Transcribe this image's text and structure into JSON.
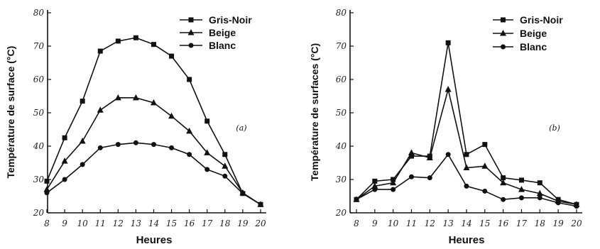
{
  "chart_data": [
    {
      "type": "line",
      "panel_label": "(a)",
      "xlabel": "Heures",
      "ylabel": "Température de surface (°C)",
      "x": [
        8,
        9,
        10,
        11,
        12,
        13,
        14,
        15,
        16,
        17,
        18,
        19,
        20
      ],
      "xticks": [
        "8",
        "9",
        "10",
        "11",
        "12",
        "13",
        "14",
        "15",
        "16",
        "17",
        "18",
        "19",
        "20"
      ],
      "ylim": [
        20,
        80
      ],
      "yticks": [
        "20",
        "30",
        "40",
        "50",
        "60",
        "70",
        "80"
      ],
      "legend_position": "top-right",
      "series": [
        {
          "name": "Gris-Noir",
          "marker": "square",
          "values": [
            29.5,
            42.5,
            53.5,
            68.5,
            71.5,
            72.5,
            70.5,
            67,
            60,
            47.5,
            37.5,
            25.8,
            22.5
          ]
        },
        {
          "name": "Beige",
          "marker": "triangle",
          "values": [
            27,
            35.5,
            41.5,
            50.8,
            54.5,
            54.5,
            53,
            49,
            44.5,
            38,
            34,
            26,
            22.5
          ]
        },
        {
          "name": "Blanc",
          "marker": "circle",
          "values": [
            26,
            30,
            34.5,
            39.5,
            40.5,
            41,
            40.5,
            39.5,
            37.5,
            33,
            31,
            25.8,
            22.5
          ]
        }
      ]
    },
    {
      "type": "line",
      "panel_label": "(b)",
      "xlabel": "Heures",
      "ylabel": "Température de surfaces (°C)",
      "x": [
        8,
        9,
        10,
        11,
        12,
        13,
        14,
        15,
        16,
        17,
        18,
        19,
        20
      ],
      "xticks": [
        "8",
        "9",
        "10",
        "11",
        "12",
        "13",
        "14",
        "15",
        "16",
        "17",
        "18",
        "19",
        "20"
      ],
      "ylim": [
        20,
        80
      ],
      "yticks": [
        "20",
        "30",
        "40",
        "50",
        "60",
        "70",
        "80"
      ],
      "legend_position": "top-right",
      "series": [
        {
          "name": "Gris-Noir",
          "marker": "square",
          "values": [
            24,
            29.5,
            30,
            37,
            37,
            71,
            37.5,
            40.5,
            30.5,
            29.8,
            29,
            24,
            22.5
          ]
        },
        {
          "name": "Beige",
          "marker": "triangle",
          "values": [
            24,
            28,
            29,
            38,
            36.5,
            57,
            33.5,
            34,
            29,
            27,
            25.8,
            23.5,
            22.5
          ]
        },
        {
          "name": "Blanc",
          "marker": "circle",
          "values": [
            24,
            27,
            27,
            30.8,
            30.5,
            37.5,
            28,
            26.5,
            24,
            24.5,
            24.5,
            23,
            22
          ]
        }
      ]
    }
  ]
}
